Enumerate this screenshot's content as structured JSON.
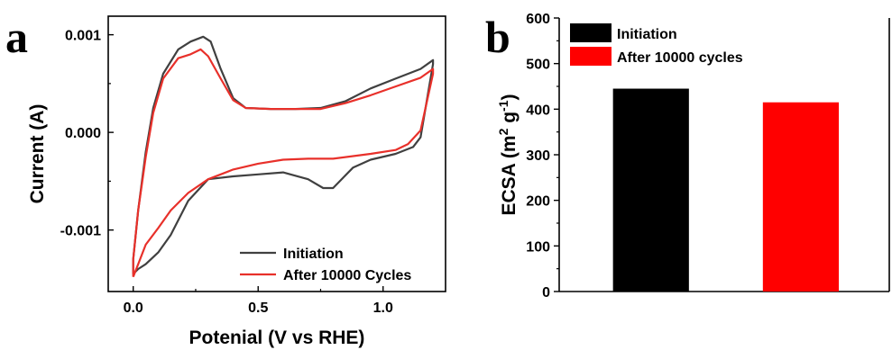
{
  "chart_data": [
    {
      "panel": "a",
      "type": "line",
      "xlabel": "Potenial (V vs RHE)",
      "ylabel": "Current (A)",
      "xlim": [
        -0.1,
        1.25
      ],
      "ylim": [
        -0.00163,
        0.00119
      ],
      "xticks": [
        0.0,
        0.5,
        1.0
      ],
      "xtick_labels": [
        "0.0",
        "0.5",
        "1.0"
      ],
      "yticks": [
        0.001,
        0.0,
        -0.001
      ],
      "ytick_labels": [
        "0.001",
        "0.000",
        "-0.001"
      ],
      "legend_position": "bottom-right",
      "series": [
        {
          "name": "Initiation",
          "color": "#404040",
          "points": [
            [
              0.0,
              -0.00145
            ],
            [
              0.0,
              -0.0013
            ],
            [
              0.02,
              -0.0008
            ],
            [
              0.05,
              -0.0002
            ],
            [
              0.08,
              0.00025
            ],
            [
              0.12,
              0.0006
            ],
            [
              0.18,
              0.00085
            ],
            [
              0.23,
              0.00093
            ],
            [
              0.28,
              0.00098
            ],
            [
              0.31,
              0.00093
            ],
            [
              0.35,
              0.00065
            ],
            [
              0.4,
              0.00035
            ],
            [
              0.45,
              0.00025
            ],
            [
              0.55,
              0.00024
            ],
            [
              0.65,
              0.00024
            ],
            [
              0.75,
              0.00025
            ],
            [
              0.85,
              0.00032
            ],
            [
              0.95,
              0.00045
            ],
            [
              1.05,
              0.00055
            ],
            [
              1.15,
              0.00065
            ],
            [
              1.2,
              0.00074
            ],
            [
              1.2,
              0.0007
            ],
            [
              1.15,
              -5e-05
            ],
            [
              1.12,
              -0.00015
            ],
            [
              1.05,
              -0.00022
            ],
            [
              0.95,
              -0.00028
            ],
            [
              0.88,
              -0.00036
            ],
            [
              0.8,
              -0.00057
            ],
            [
              0.76,
              -0.00057
            ],
            [
              0.7,
              -0.00048
            ],
            [
              0.6,
              -0.00041
            ],
            [
              0.5,
              -0.00043
            ],
            [
              0.4,
              -0.00045
            ],
            [
              0.3,
              -0.00048
            ],
            [
              0.22,
              -0.0007
            ],
            [
              0.15,
              -0.00105
            ],
            [
              0.1,
              -0.00123
            ],
            [
              0.05,
              -0.00135
            ],
            [
              0.02,
              -0.0014
            ],
            [
              0.0,
              -0.00145
            ]
          ]
        },
        {
          "name": "After 10000 Cycles",
          "color": "#e8302a",
          "points": [
            [
              0.0,
              -0.00148
            ],
            [
              0.0,
              -0.0013
            ],
            [
              0.02,
              -0.0008
            ],
            [
              0.05,
              -0.00025
            ],
            [
              0.08,
              0.0002
            ],
            [
              0.12,
              0.00055
            ],
            [
              0.18,
              0.00076
            ],
            [
              0.23,
              0.0008
            ],
            [
              0.27,
              0.00085
            ],
            [
              0.3,
              0.00078
            ],
            [
              0.35,
              0.00055
            ],
            [
              0.4,
              0.00033
            ],
            [
              0.45,
              0.00025
            ],
            [
              0.55,
              0.00024
            ],
            [
              0.65,
              0.00024
            ],
            [
              0.75,
              0.00024
            ],
            [
              0.85,
              0.0003
            ],
            [
              0.95,
              0.00038
            ],
            [
              1.05,
              0.00047
            ],
            [
              1.15,
              0.00056
            ],
            [
              1.2,
              0.00065
            ],
            [
              1.2,
              0.0006
            ],
            [
              1.15,
              2e-05
            ],
            [
              1.1,
              -0.00012
            ],
            [
              1.05,
              -0.00018
            ],
            [
              0.95,
              -0.00022
            ],
            [
              0.8,
              -0.00027
            ],
            [
              0.7,
              -0.00027
            ],
            [
              0.6,
              -0.00028
            ],
            [
              0.5,
              -0.00032
            ],
            [
              0.4,
              -0.00038
            ],
            [
              0.3,
              -0.00048
            ],
            [
              0.22,
              -0.00062
            ],
            [
              0.15,
              -0.0008
            ],
            [
              0.1,
              -0.00098
            ],
            [
              0.05,
              -0.00115
            ],
            [
              0.02,
              -0.00135
            ],
            [
              0.0,
              -0.00148
            ]
          ]
        }
      ]
    },
    {
      "panel": "b",
      "type": "bar",
      "categories": [
        "Initiation",
        "After 10000 cycles"
      ],
      "values": [
        445,
        415
      ],
      "colors": [
        "#000000",
        "#ff0000"
      ],
      "ylabel_main": "ECSA (m",
      "ylabel_sup1": "2",
      "ylabel_mid": " g",
      "ylabel_sup2": "-1",
      "ylabel_end": ")",
      "ylim": [
        0,
        600
      ],
      "yticks": [
        0,
        100,
        200,
        300,
        400,
        500,
        600
      ],
      "legend_position": "top-left"
    }
  ],
  "panel_labels": {
    "a": "a",
    "b": "b"
  }
}
